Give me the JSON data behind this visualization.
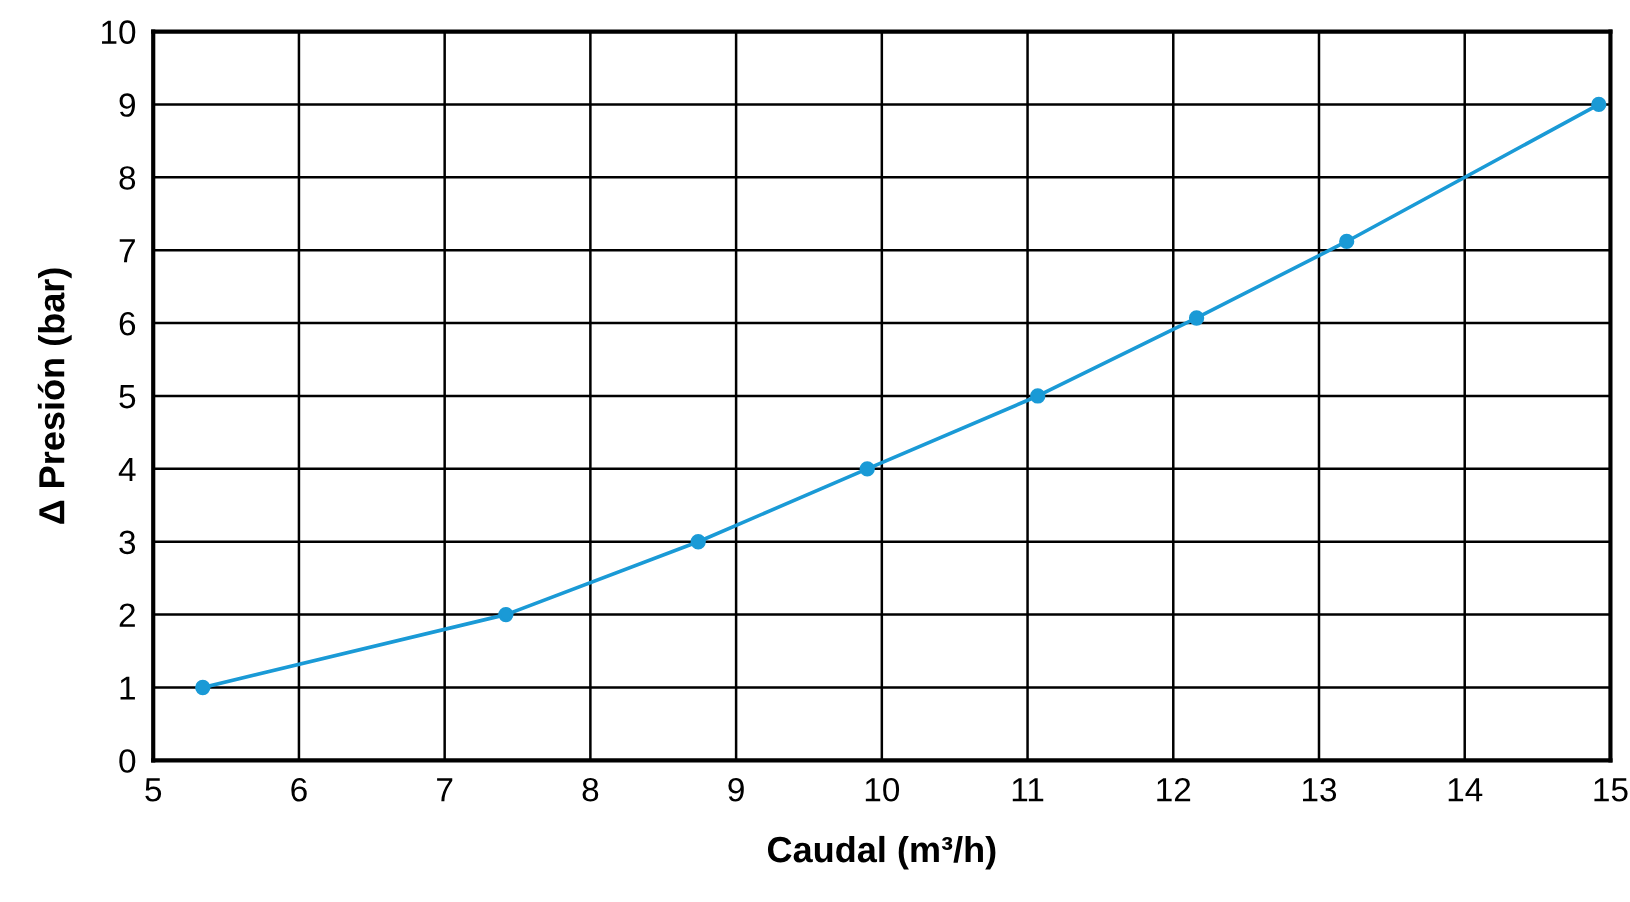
{
  "chart_data": {
    "type": "line",
    "xlabel": "Caudal (m³/h)",
    "ylabel": "Δ Presión (bar)",
    "series": [
      {
        "color": "#1a9ad6",
        "x": [
          5.34,
          7.42,
          8.74,
          9.9,
          11.07,
          12.16,
          13.19,
          14.92
        ],
        "values": [
          1,
          2,
          3,
          4,
          5,
          6.07,
          7.12,
          9
        ]
      }
    ],
    "xlim": [
      5,
      15
    ],
    "xticks": [
      5,
      6,
      7,
      8,
      9,
      10,
      11,
      12,
      13,
      14,
      15
    ],
    "ylim": [
      0,
      10
    ],
    "yticks": [
      0,
      1,
      2,
      3,
      4,
      5,
      6,
      7,
      8,
      9,
      10
    ],
    "grid": true,
    "marker": "circle",
    "line_style": "solid"
  }
}
